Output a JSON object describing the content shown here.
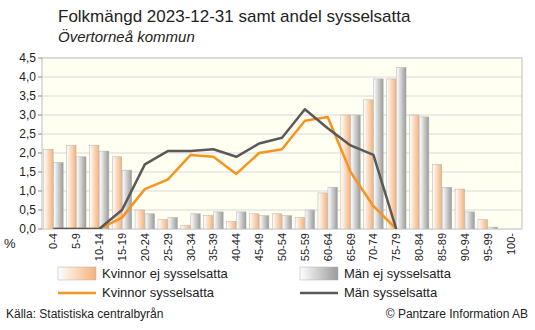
{
  "chart_data": {
    "type": "bar",
    "title": "Folkmängd 2023-12-31 samt andel sysselsatta",
    "subtitle": "Övertorneå kommun",
    "y_label": "%",
    "source": "Källa: Statistiska centralbyrån",
    "credit": "© Pantzare Information AB",
    "categories": [
      "0-4",
      "5-9",
      "10-14",
      "15-19",
      "20-24",
      "25-29",
      "30-34",
      "35-39",
      "40-44",
      "45-49",
      "50-54",
      "55-59",
      "60-64",
      "65-69",
      "70-74",
      "75-79",
      "80-84",
      "85-89",
      "90-94",
      "95-99",
      "100-"
    ],
    "series": [
      {
        "name": "Kvinnor ej sysselsatta",
        "type": "bar",
        "color": "#f5b27a",
        "values": [
          2.1,
          2.2,
          2.2,
          1.9,
          0.5,
          0.25,
          0.1,
          0.35,
          0.2,
          0.4,
          0.4,
          0.3,
          0.95,
          3.0,
          3.4,
          3.95,
          3.0,
          1.7,
          1.05,
          0.25,
          0.0
        ]
      },
      {
        "name": "Män ej sysselsatta",
        "type": "bar",
        "color": "#9a9a9a",
        "values": [
          1.75,
          1.9,
          2.05,
          1.55,
          0.4,
          0.3,
          0.4,
          0.45,
          0.45,
          0.35,
          0.35,
          0.5,
          1.1,
          3.0,
          3.95,
          4.25,
          2.95,
          1.1,
          0.45,
          0.05,
          0.0
        ]
      },
      {
        "name": "Kvinnor sysselsatta",
        "type": "line",
        "color": "#f7931e",
        "values": [
          0,
          0,
          0,
          0.3,
          1.05,
          1.3,
          1.95,
          1.9,
          1.45,
          2.0,
          2.1,
          2.85,
          2.95,
          1.5,
          0.6,
          0.0,
          null,
          null,
          null,
          null,
          null
        ]
      },
      {
        "name": "Män sysselsatta",
        "type": "line",
        "color": "#595959",
        "values": [
          0,
          0,
          0,
          0.5,
          1.7,
          2.05,
          2.05,
          2.1,
          1.9,
          2.25,
          2.4,
          3.15,
          2.65,
          2.2,
          1.95,
          0.0,
          null,
          null,
          null,
          null,
          null
        ]
      }
    ],
    "ylim": [
      0,
      4.5
    ],
    "yticks": [
      {
        "value": 0,
        "label": "0,0"
      },
      {
        "value": 0.5,
        "label": "0,5"
      },
      {
        "value": 1,
        "label": "1,0"
      },
      {
        "value": 1.5,
        "label": "1,5"
      },
      {
        "value": 2,
        "label": "2,0"
      },
      {
        "value": 2.5,
        "label": "2,5"
      },
      {
        "value": 3,
        "label": "3,0"
      },
      {
        "value": 3.5,
        "label": "3,5"
      },
      {
        "value": 4,
        "label": "4,0"
      },
      {
        "value": 4.5,
        "label": "4,5"
      }
    ],
    "grid": true,
    "legend": "bottom"
  }
}
